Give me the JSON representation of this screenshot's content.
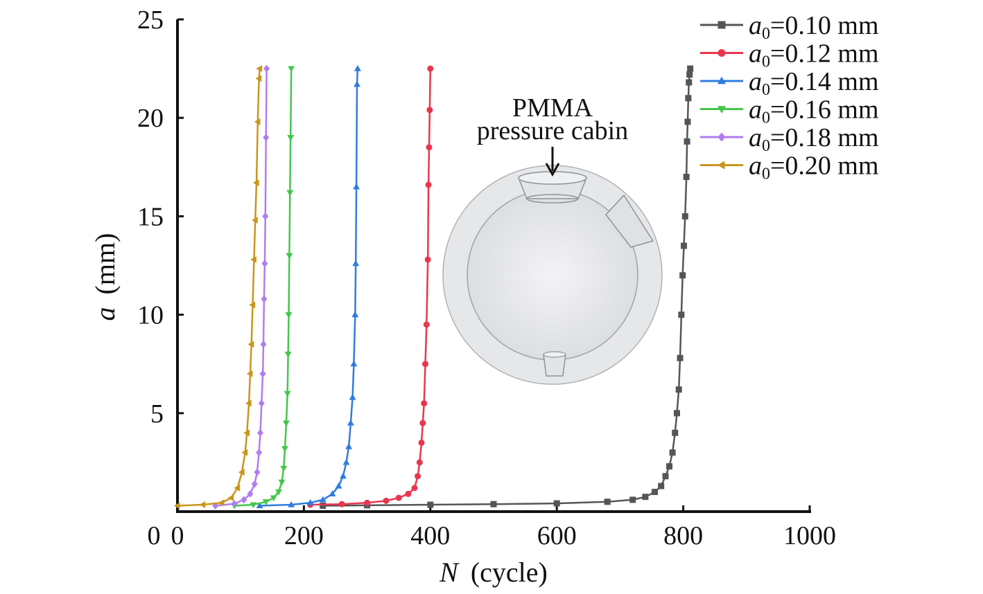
{
  "chart_data": {
    "type": "line",
    "xlabel": {
      "symbol": "N",
      "unit": "(cycle)"
    },
    "ylabel": {
      "symbol": "a",
      "unit": "(mm)"
    },
    "xlim": [
      0,
      1000
    ],
    "ylim": [
      0,
      25
    ],
    "xticks": [
      0,
      200,
      400,
      600,
      800,
      1000
    ],
    "yticks": [
      0,
      5,
      10,
      15,
      20,
      25
    ],
    "xtick_labels": [
      "0",
      "200",
      "400",
      "600",
      "800",
      "1000"
    ],
    "ytick_labels": [
      "0",
      "5",
      "10",
      "15",
      "20",
      "25"
    ],
    "grid": false,
    "legend_position": "top-right",
    "annotation": {
      "line1": "PMMA",
      "line2": "pressure cabin"
    },
    "series": [
      {
        "name": "a0=0.10 mm",
        "legend": {
          "sym": "a",
          "sub": "0",
          "rest": "=0.10 mm"
        },
        "color": "#555555",
        "marker": "square",
        "x": [
          230,
          300,
          400,
          500,
          600,
          680,
          720,
          740,
          755,
          765,
          772,
          778,
          783,
          787,
          790,
          793,
          795,
          797,
          799,
          801,
          803,
          805,
          806,
          807,
          808,
          809,
          810,
          811
        ],
        "y": [
          0.3,
          0.32,
          0.35,
          0.38,
          0.42,
          0.5,
          0.6,
          0.75,
          1.0,
          1.3,
          1.8,
          2.3,
          3.0,
          4.0,
          5.0,
          6.2,
          7.8,
          10.0,
          12.0,
          13.5,
          15.0,
          17.0,
          18.8,
          19.8,
          21.0,
          21.8,
          22.2,
          22.5
        ]
      },
      {
        "name": "a0=0.12 mm",
        "legend": {
          "sym": "a",
          "sub": "0",
          "rest": "=0.12 mm"
        },
        "color": "#e8364e",
        "marker": "circle",
        "x": [
          210,
          260,
          300,
          330,
          350,
          365,
          375,
          380,
          383,
          386,
          388,
          390,
          392,
          394,
          396,
          397,
          398,
          399,
          400
        ],
        "y": [
          0.35,
          0.38,
          0.45,
          0.55,
          0.7,
          0.9,
          1.2,
          1.8,
          2.5,
          3.5,
          4.5,
          5.5,
          7.5,
          9.5,
          12.8,
          16.6,
          18.5,
          20.4,
          22.5
        ]
      },
      {
        "name": "a0=0.14 mm",
        "legend": {
          "sym": "a",
          "sub": "0",
          "rest": "=0.14 mm"
        },
        "color": "#2f7be0",
        "marker": "triangle-up",
        "x": [
          130,
          180,
          210,
          230,
          245,
          255,
          262,
          267,
          271,
          274,
          277,
          279,
          281,
          282,
          283,
          284,
          285
        ],
        "y": [
          0.3,
          0.35,
          0.45,
          0.6,
          0.9,
          1.3,
          1.8,
          2.5,
          3.3,
          4.5,
          5.8,
          7.5,
          10.0,
          12.6,
          16.5,
          21.7,
          22.5
        ]
      },
      {
        "name": "a0=0.16 mm",
        "legend": {
          "sym": "a",
          "sub": "0",
          "rest": "=0.16 mm"
        },
        "color": "#44c64a",
        "marker": "triangle-down",
        "x": [
          90,
          120,
          140,
          152,
          160,
          165,
          168,
          170,
          172,
          174,
          175,
          176,
          177,
          178,
          179,
          180
        ],
        "y": [
          0.3,
          0.35,
          0.5,
          0.7,
          1.0,
          1.5,
          2.2,
          3.2,
          4.5,
          6.0,
          8.0,
          10.0,
          13.0,
          16.2,
          19.0,
          22.5
        ]
      },
      {
        "name": "a0=0.18 mm",
        "legend": {
          "sym": "a",
          "sub": "0",
          "rest": "=0.18 mm"
        },
        "color": "#b07cf0",
        "marker": "diamond",
        "x": [
          60,
          90,
          105,
          115,
          122,
          126,
          129,
          131,
          133,
          135,
          136,
          137,
          138,
          139,
          140,
          141
        ],
        "y": [
          0.3,
          0.4,
          0.6,
          0.9,
          1.4,
          2.0,
          3.0,
          4.0,
          5.5,
          7.0,
          8.5,
          10.8,
          12.6,
          15.0,
          19.0,
          22.5
        ]
      },
      {
        "name": "a0=0.20 mm",
        "legend": {
          "sym": "a",
          "sub": "0",
          "rest": "=0.20 mm"
        },
        "color": "#c9951c",
        "marker": "triangle-left",
        "x": [
          0,
          40,
          70,
          85,
          95,
          102,
          107,
          110,
          113,
          115,
          117,
          119,
          121,
          123,
          125,
          127,
          129,
          130
        ],
        "y": [
          0.3,
          0.35,
          0.45,
          0.7,
          1.2,
          2.0,
          3.0,
          4.0,
          5.5,
          7.0,
          8.5,
          10.5,
          12.8,
          14.8,
          16.7,
          19.8,
          22.0,
          22.5
        ]
      }
    ]
  }
}
